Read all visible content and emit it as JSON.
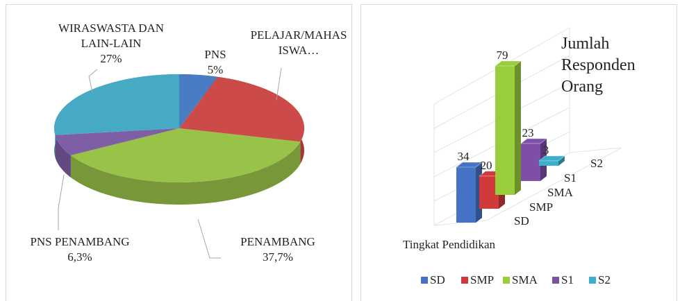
{
  "chart_data": [
    {
      "type": "pie",
      "categories": [
        "PNS",
        "PELAJAR/MAHASISWA…",
        "PENAMBANG",
        "PNS PENAMBANG",
        "WIRASWASTA DAN LAIN-LAIN"
      ],
      "values": [
        5,
        24,
        37.7,
        6.3,
        27
      ],
      "value_labels": [
        "5%",
        null,
        "37,7%",
        "6,3%",
        "27%"
      ],
      "colors": [
        "#4a7cc4",
        "#cc4a47",
        "#99c248",
        "#7e5fa6",
        "#46aac5"
      ]
    },
    {
      "type": "bar3d",
      "title": "Jumlah Responden Orang",
      "xlabel": "Tingkat Pendidikan",
      "categories": [
        "SD",
        "SMP",
        "SMA",
        "S1",
        "S2"
      ],
      "series": [
        {
          "name": "SD",
          "color": "#4472c4",
          "values": [
            34,
            null,
            null,
            null,
            null
          ]
        },
        {
          "name": "SMP",
          "color": "#d03a3a",
          "values": [
            null,
            20,
            null,
            null,
            null
          ]
        },
        {
          "name": "SMA",
          "color": "#9acd3c",
          "values": [
            null,
            null,
            79,
            null,
            null
          ]
        },
        {
          "name": "S1",
          "color": "#7e4fa8",
          "values": [
            null,
            null,
            null,
            23,
            null
          ]
        },
        {
          "name": "S2",
          "color": "#3ab0cc",
          "values": [
            null,
            null,
            null,
            null,
            3
          ]
        }
      ],
      "legend": "bottom"
    }
  ]
}
